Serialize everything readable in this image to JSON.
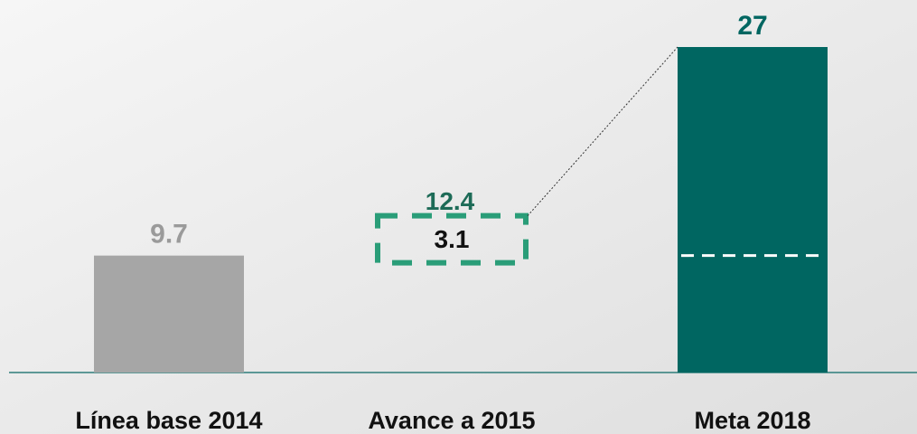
{
  "chart_data": {
    "type": "bar",
    "categories": [
      "Línea base 2014",
      "Avance a 2015",
      "Meta 2018"
    ],
    "values": [
      9.7,
      12.4,
      27
    ],
    "colors": [
      "#a6a6a6",
      "#2a9d78",
      "#006661"
    ],
    "label_colors": [
      "#9a9a9a",
      "#1d6b57",
      "#006661"
    ],
    "styles": [
      "solid",
      "increment",
      "solid"
    ],
    "annotation": {
      "text": "3.1"
    },
    "ylim": [
      0,
      27
    ]
  }
}
